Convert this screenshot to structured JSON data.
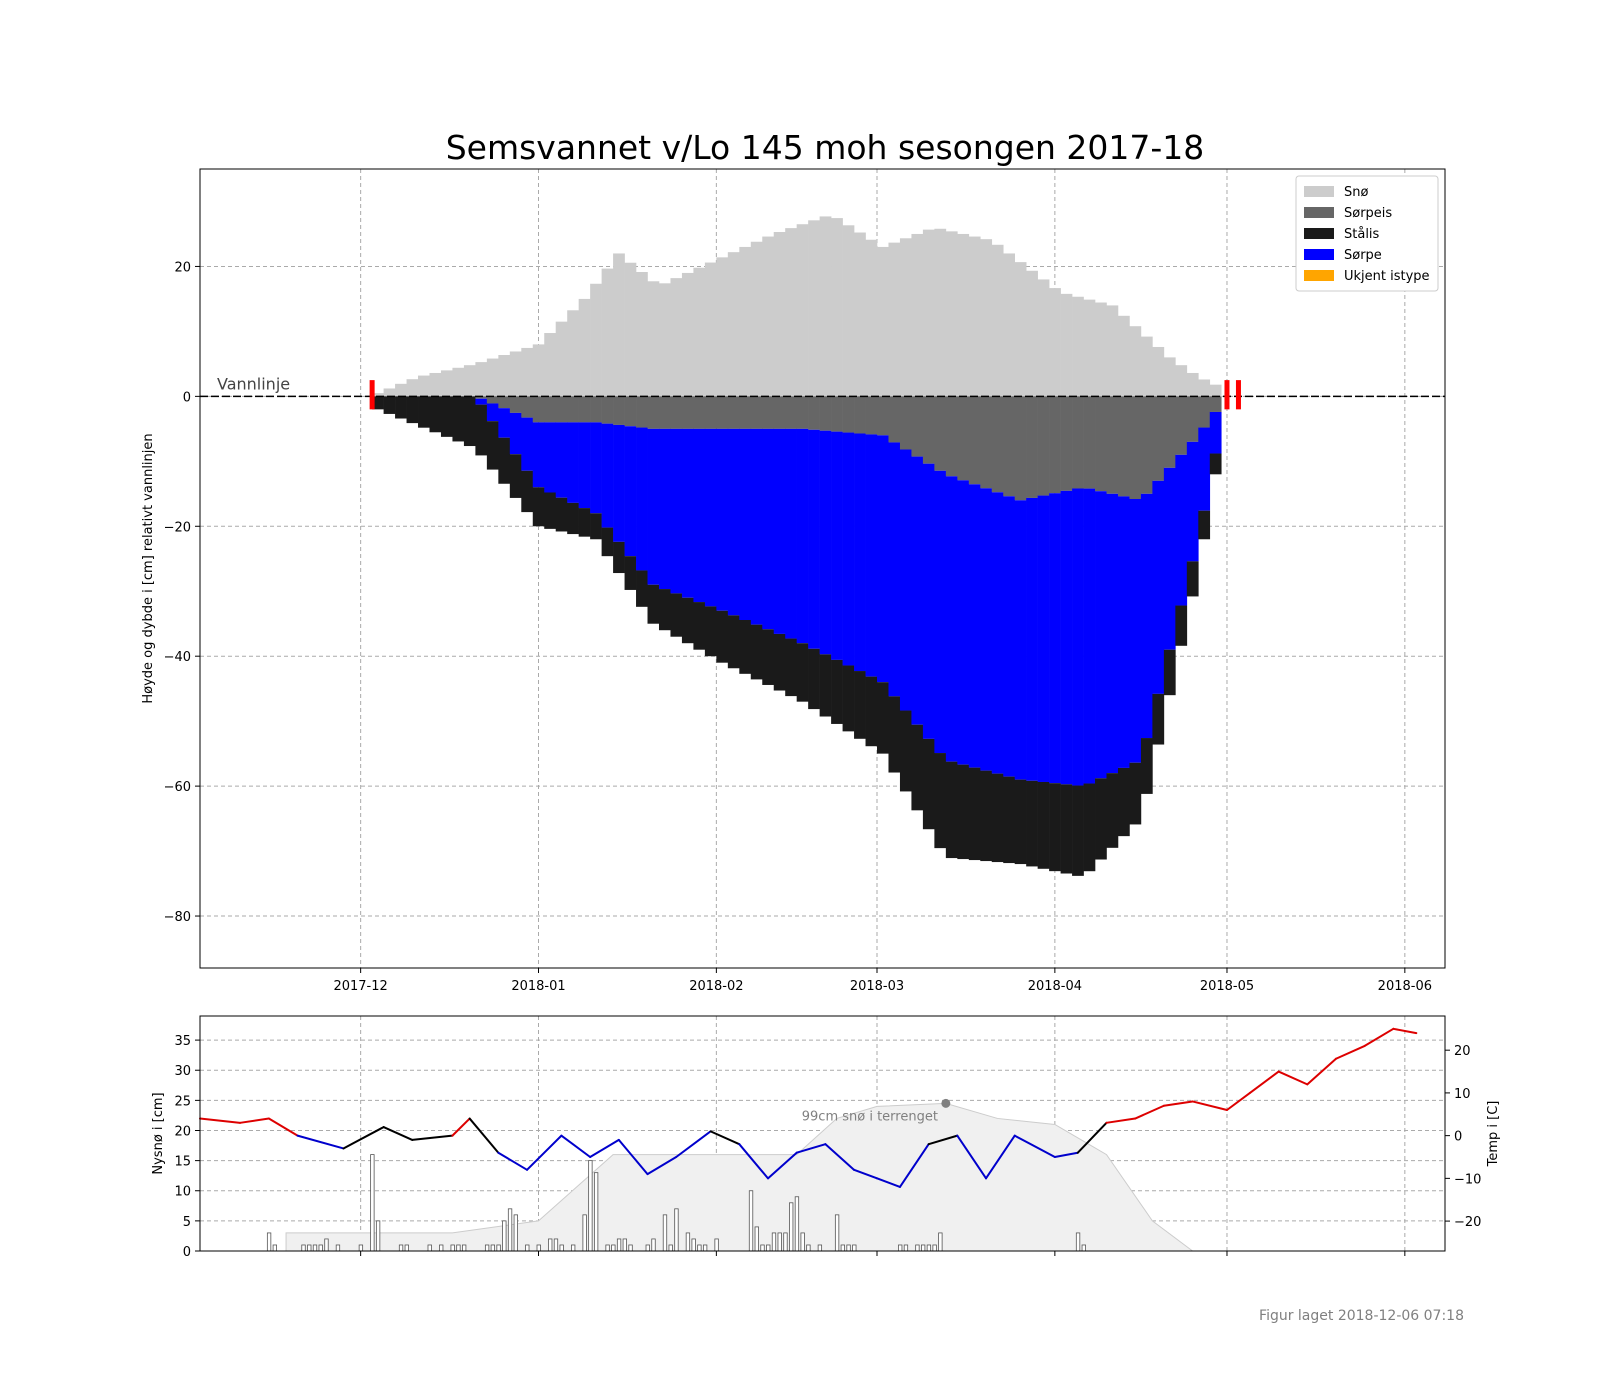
{
  "chart_data": [
    {
      "type": "area",
      "title": "Semsvannet v/Lo 145 moh sesongen 2017-18",
      "ylabel": "Høyde og dybde i [cm] relativt vannlinjen",
      "xlabel": "",
      "xlim": [
        "2017-11-03",
        "2018-06-08"
      ],
      "ylim": [
        -88,
        35
      ],
      "grid": true,
      "x_ticks": [
        "2017-12",
        "2018-01",
        "2018-02",
        "2018-03",
        "2018-04",
        "2018-05",
        "2018-06"
      ],
      "y_ticks": [
        -80,
        -60,
        -40,
        -20,
        0,
        20
      ],
      "annotation": "Vannlinje",
      "legend": {
        "position": "top-right",
        "entries": [
          {
            "label": "Snø",
            "color": "#cccccc"
          },
          {
            "label": "Sørpeis",
            "color": "#666666"
          },
          {
            "label": "Stålis",
            "color": "#1a1a1a"
          },
          {
            "label": "Sørpe",
            "color": "#0000ff"
          },
          {
            "label": "Ukjent istype",
            "color": "#ffa500"
          }
        ]
      },
      "series": [
        {
          "name": "Snø",
          "x": [
            "2017-12-03",
            "2017-12-10",
            "2017-12-20",
            "2017-12-31",
            "2018-01-08",
            "2018-01-14",
            "2018-01-21",
            "2018-01-31",
            "2018-02-10",
            "2018-02-20",
            "2018-03-01",
            "2018-03-10",
            "2018-03-20",
            "2018-04-01",
            "2018-04-10",
            "2018-04-15",
            "2018-04-20",
            "2018-04-25",
            "2018-04-30"
          ],
          "values": [
            0.5,
            3,
            5,
            8,
            15,
            22,
            17,
            21,
            25,
            28,
            23,
            26,
            24,
            16,
            14,
            10,
            6,
            3,
            1
          ]
        },
        {
          "name": "Sørpeis",
          "x": [
            "2017-12-03",
            "2017-12-20",
            "2017-12-31",
            "2018-01-10",
            "2018-01-20",
            "2018-02-01",
            "2018-02-15",
            "2018-03-01",
            "2018-03-12",
            "2018-03-25",
            "2018-04-05",
            "2018-04-15",
            "2018-04-25",
            "2018-04-30"
          ],
          "values": [
            0,
            0,
            4,
            4,
            5,
            5,
            5,
            6,
            12,
            16,
            14,
            16,
            6,
            0
          ]
        },
        {
          "name": "Sørpe",
          "x": [
            "2017-12-03",
            "2017-12-20",
            "2017-12-31",
            "2018-01-10",
            "2018-01-20",
            "2018-02-01",
            "2018-02-15",
            "2018-03-01",
            "2018-03-12",
            "2018-03-25",
            "2018-04-05",
            "2018-04-15",
            "2018-04-25",
            "2018-04-30"
          ],
          "values": [
            0,
            0,
            10,
            14,
            24,
            28,
            33,
            38,
            44,
            43,
            46,
            40,
            16,
            0
          ]
        },
        {
          "name": "Stålis",
          "x": [
            "2017-12-03",
            "2017-12-20",
            "2017-12-31",
            "2018-01-10",
            "2018-01-20",
            "2018-02-01",
            "2018-02-15",
            "2018-03-01",
            "2018-03-12",
            "2018-03-25",
            "2018-04-05",
            "2018-04-15",
            "2018-04-25",
            "2018-04-30"
          ],
          "values": [
            2,
            8,
            6,
            4,
            6,
            8,
            9,
            11,
            15,
            13,
            14,
            9,
            5,
            2
          ]
        }
      ],
      "markers": [
        "2017-12-03",
        "2018-05-01",
        "2018-05-03"
      ]
    },
    {
      "type": "bar",
      "ylabel": "Nysnø i [cm]",
      "y2label": "Temp i [C]",
      "ylim": [
        0,
        39
      ],
      "y2lim": [
        -27,
        28
      ],
      "y_ticks": [
        0,
        5,
        10,
        15,
        20,
        25,
        30,
        35
      ],
      "y2_ticks": [
        -20,
        -10,
        0,
        10,
        20
      ],
      "annotation": "99cm snø i terrenget",
      "annotation_point": {
        "x": "2018-03-13",
        "y": 24.5
      },
      "snow_bars": {
        "x": [
          "2017-11-15",
          "2017-11-16",
          "2017-11-21",
          "2017-11-22",
          "2017-11-23",
          "2017-11-24",
          "2017-11-25",
          "2017-11-27",
          "2017-12-01",
          "2017-12-03",
          "2017-12-04",
          "2017-12-08",
          "2017-12-09",
          "2017-12-13",
          "2017-12-15",
          "2017-12-17",
          "2017-12-18",
          "2017-12-19",
          "2017-12-23",
          "2017-12-24",
          "2017-12-25",
          "2017-12-26",
          "2017-12-27",
          "2017-12-28",
          "2017-12-30",
          "2018-01-01",
          "2018-01-03",
          "2018-01-04",
          "2018-01-05",
          "2018-01-07",
          "2018-01-09",
          "2018-01-10",
          "2018-01-11",
          "2018-01-13",
          "2018-01-14",
          "2018-01-15",
          "2018-01-16",
          "2018-01-17",
          "2018-01-20",
          "2018-01-21",
          "2018-01-23",
          "2018-01-24",
          "2018-01-25",
          "2018-01-27",
          "2018-01-28",
          "2018-01-29",
          "2018-01-30",
          "2018-02-01",
          "2018-02-07",
          "2018-02-08",
          "2018-02-09",
          "2018-02-10",
          "2018-02-11",
          "2018-02-12",
          "2018-02-13",
          "2018-02-14",
          "2018-02-15",
          "2018-02-16",
          "2018-02-17",
          "2018-02-19",
          "2018-02-22",
          "2018-02-23",
          "2018-02-24",
          "2018-02-25",
          "2018-03-05",
          "2018-03-06",
          "2018-03-08",
          "2018-03-09",
          "2018-03-10",
          "2018-03-11",
          "2018-03-12",
          "2018-04-05",
          "2018-04-06"
        ],
        "values": [
          3,
          1,
          1,
          1,
          1,
          1,
          2,
          1,
          1,
          16,
          5,
          1,
          1,
          1,
          1,
          1,
          1,
          1,
          1,
          1,
          1,
          5,
          7,
          6,
          1,
          1,
          2,
          2,
          1,
          1,
          6,
          15,
          13,
          1,
          1,
          2,
          2,
          1,
          1,
          2,
          6,
          1,
          7,
          3,
          2,
          1,
          1,
          2,
          10,
          4,
          1,
          1,
          3,
          3,
          3,
          8,
          9,
          3,
          1,
          1,
          6,
          1,
          1,
          1,
          1,
          1,
          1,
          1,
          1,
          1,
          3,
          3,
          1
        ]
      },
      "snow_depth_shading": {
        "x": [
          "2017-11-18",
          "2017-12-05",
          "2017-12-17",
          "2018-01-01",
          "2018-01-14",
          "2018-02-01",
          "2018-02-15",
          "2018-02-22",
          "2018-03-01",
          "2018-03-13",
          "2018-03-22",
          "2018-04-01",
          "2018-04-10",
          "2018-04-18",
          "2018-04-25"
        ],
        "values": [
          3,
          3,
          3,
          5,
          16,
          16,
          16,
          22,
          24,
          24.5,
          22,
          21,
          16,
          5,
          0
        ]
      },
      "temperature": {
        "x": [
          "2017-11-03",
          "2017-11-10",
          "2017-11-15",
          "2017-11-20",
          "2017-11-28",
          "2017-12-05",
          "2017-12-10",
          "2017-12-17",
          "2017-12-20",
          "2017-12-25",
          "2017-12-30",
          "2018-01-05",
          "2018-01-10",
          "2018-01-15",
          "2018-01-20",
          "2018-01-25",
          "2018-01-31",
          "2018-02-05",
          "2018-02-10",
          "2018-02-15",
          "2018-02-20",
          "2018-02-25",
          "2018-03-01",
          "2018-03-05",
          "2018-03-10",
          "2018-03-15",
          "2018-03-20",
          "2018-03-25",
          "2018-04-01",
          "2018-04-05",
          "2018-04-10",
          "2018-04-15",
          "2018-04-20",
          "2018-04-25",
          "2018-05-01",
          "2018-05-05",
          "2018-05-10",
          "2018-05-15",
          "2018-05-20",
          "2018-05-25",
          "2018-05-30",
          "2018-06-03"
        ],
        "values": [
          4,
          3,
          4,
          0,
          -3,
          2,
          -1,
          0,
          4,
          -4,
          -8,
          0,
          -5,
          -1,
          -9,
          -5,
          1,
          -2,
          -10,
          -4,
          -2,
          -8,
          -10,
          -12,
          -2,
          0,
          -10,
          0,
          -5,
          -4,
          3,
          4,
          7,
          8,
          6,
          10,
          15,
          12,
          18,
          21,
          25,
          24
        ]
      },
      "x_ticks": [
        "2017-12",
        "2018-01",
        "2018-02",
        "2018-03",
        "2018-04",
        "2018-05",
        "2018-06"
      ]
    }
  ],
  "footer": "Figur laget 2018-12-06 07:18"
}
